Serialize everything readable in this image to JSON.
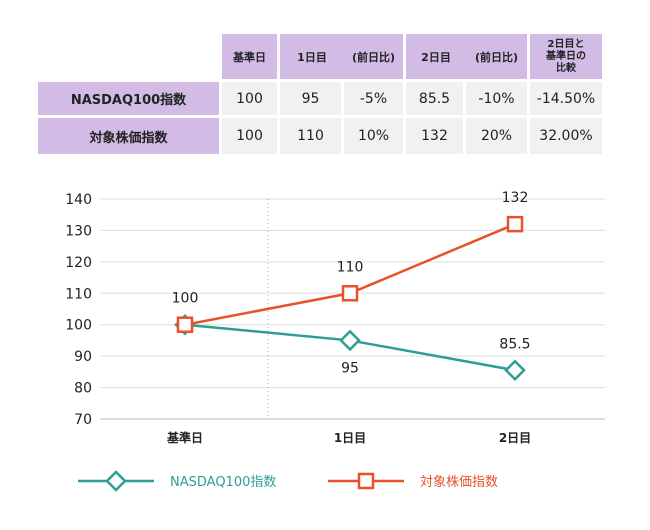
{
  "table": {
    "headers": [
      "基準日",
      "1日目",
      "(前日比)",
      "2日目",
      "(前日比)",
      "2日目と\n基準日の\n比較"
    ],
    "rows": [
      {
        "label": "NASDAQ100指数",
        "cells": [
          "100",
          "95",
          "-5%",
          "85.5",
          "-10%",
          "-14.50%"
        ]
      },
      {
        "label": "対象株価指数",
        "cells": [
          "100",
          "110",
          "10%",
          "132",
          "20%",
          "32.00%"
        ]
      }
    ]
  },
  "chart_data": {
    "type": "line",
    "categories": [
      "基準日",
      "1日目",
      "2日目"
    ],
    "series": [
      {
        "name": "NASDAQ100指数",
        "values": [
          100,
          95,
          85.5
        ],
        "labels": [
          "",
          "95",
          "85.5"
        ],
        "color": "#2e9e94",
        "marker": "diamond"
      },
      {
        "name": "対象株価指数",
        "values": [
          100,
          110,
          132
        ],
        "labels": [
          "100",
          "110",
          "132"
        ],
        "color": "#e8522a",
        "marker": "square"
      }
    ],
    "yticks": [
      "140",
      "130",
      "120",
      "110",
      "100",
      "90",
      "80",
      "70"
    ],
    "ylim": [
      70,
      140
    ],
    "grid": true,
    "legend": "bottom"
  }
}
